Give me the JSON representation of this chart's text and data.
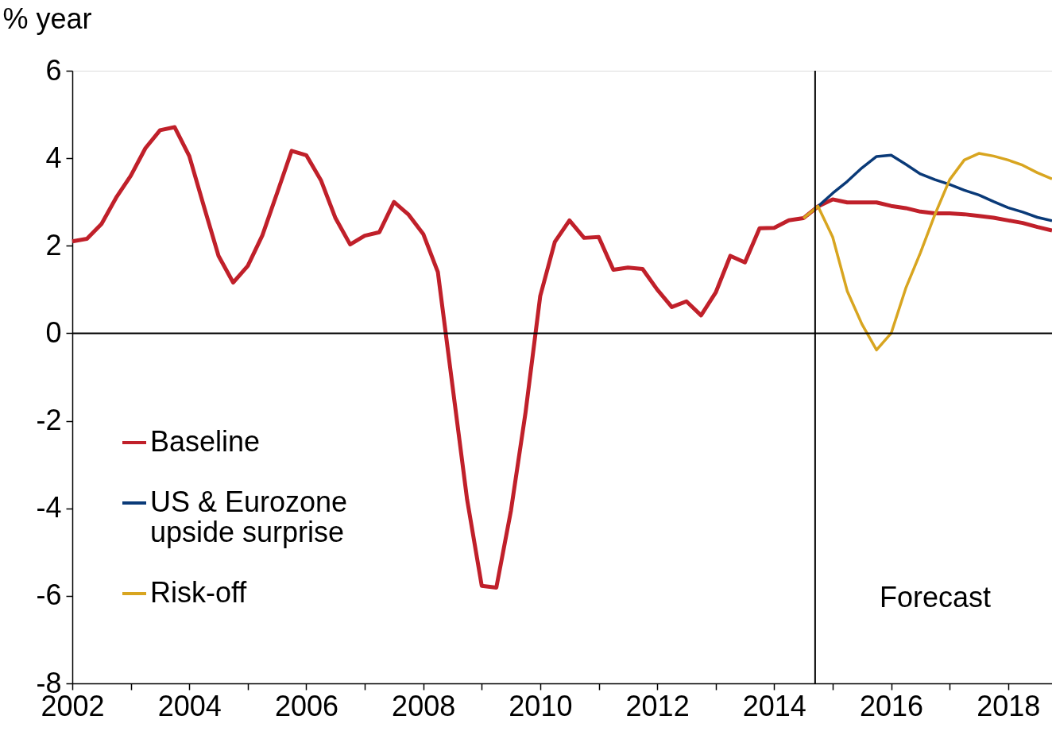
{
  "chart_data": {
    "type": "line",
    "ylabel": "% year",
    "xlim": [
      2002,
      2018.75
    ],
    "xticks": [
      2002,
      {
        "value": 2003,
        "label": null
      },
      2004,
      {
        "value": 2005,
        "label": null
      },
      2006,
      {
        "value": 2007,
        "label": null
      },
      2008,
      {
        "value": 2009,
        "label": null
      },
      2010,
      {
        "value": 2011,
        "label": null
      },
      2012,
      {
        "value": 2013,
        "label": null
      },
      2014,
      {
        "value": 2015,
        "label": null
      },
      2016,
      {
        "value": 2017,
        "label": null
      },
      2018
    ],
    "ylim": [
      -8,
      6
    ],
    "yticks": [
      -8,
      -6,
      -4,
      -2,
      0,
      2,
      4,
      6
    ],
    "grid": false,
    "legend": "bottom left",
    "marker": "none",
    "line_style": "solid",
    "series": [
      {
        "name": "Baseline",
        "color": "#c0202a",
        "x": [
          2002,
          2002.25,
          2002.5,
          2002.75,
          2003,
          2003.25,
          2003.5,
          2003.75,
          2004,
          2004.25,
          2004.5,
          2004.75,
          2005,
          2005.25,
          2005.5,
          2005.75,
          2006,
          2006.25,
          2006.5,
          2006.75,
          2007,
          2007.25,
          2007.5,
          2007.75,
          2008,
          2008.25,
          2008.5,
          2008.75,
          2009,
          2009.25,
          2009.5,
          2009.75,
          2010,
          2010.25,
          2010.5,
          2010.75,
          2011,
          2011.25,
          2011.5,
          2011.75,
          2012,
          2012.25,
          2012.5,
          2012.75,
          2013,
          2013.25,
          2013.5,
          2013.75,
          2014,
          2014.25,
          2014.5,
          2014.75,
          2015,
          2015.25,
          2015.5,
          2015.75,
          2016,
          2016.25,
          2016.5,
          2016.75,
          2017,
          2017.25,
          2017.5,
          2017.75,
          2018,
          2018.25,
          2018.5,
          2018.75
        ],
        "values": [
          2.1,
          2.16,
          2.5,
          3.1,
          3.6,
          4.23,
          4.64,
          4.71,
          4.05,
          2.9,
          1.77,
          1.16,
          1.54,
          2.24,
          3.2,
          4.17,
          4.07,
          3.5,
          2.63,
          2.03,
          2.23,
          2.31,
          3.0,
          2.71,
          2.27,
          1.4,
          -1.2,
          -3.8,
          -5.77,
          -5.81,
          -4.05,
          -1.8,
          0.85,
          2.09,
          2.58,
          2.18,
          2.2,
          1.45,
          1.5,
          1.47,
          1.0,
          0.6,
          0.73,
          0.41,
          0.93,
          1.77,
          1.62,
          2.4,
          2.41,
          2.58,
          2.63,
          2.9,
          3.06,
          2.99,
          2.99,
          2.99,
          2.91,
          2.86,
          2.78,
          2.74,
          2.74,
          2.72,
          2.68,
          2.64,
          2.58,
          2.52,
          2.43,
          2.35
        ]
      },
      {
        "name": "US & Eurozone upside surprise",
        "color": "#0a3a78",
        "x": [
          2014.75,
          2015,
          2015.25,
          2015.5,
          2015.75,
          2016,
          2016.25,
          2016.5,
          2016.75,
          2017,
          2017.25,
          2017.5,
          2017.75,
          2018,
          2018.25,
          2018.5,
          2018.75
        ],
        "values": [
          2.9,
          3.2,
          3.47,
          3.78,
          4.04,
          4.07,
          3.86,
          3.64,
          3.51,
          3.4,
          3.27,
          3.16,
          3.01,
          2.87,
          2.77,
          2.65,
          2.57
        ]
      },
      {
        "name": "Risk-off",
        "color": "#d8a520",
        "x": [
          2014.5,
          2014.75,
          2015,
          2015.25,
          2015.5,
          2015.75,
          2016,
          2016.25,
          2016.5,
          2016.75,
          2017,
          2017.25,
          2017.5,
          2017.75,
          2018,
          2018.25,
          2018.5,
          2018.75
        ],
        "values": [
          2.63,
          2.9,
          2.2,
          0.96,
          0.21,
          -0.38,
          0.0,
          1.03,
          1.84,
          2.72,
          3.51,
          3.96,
          4.11,
          4.05,
          3.96,
          3.84,
          3.67,
          3.53
        ]
      }
    ],
    "ref_lines": [
      {
        "axis": "y",
        "value": 0,
        "color": "#000000"
      },
      {
        "axis": "x",
        "value": 2014.7,
        "color": "#000000"
      }
    ],
    "annotations": [
      "Forecast"
    ]
  }
}
